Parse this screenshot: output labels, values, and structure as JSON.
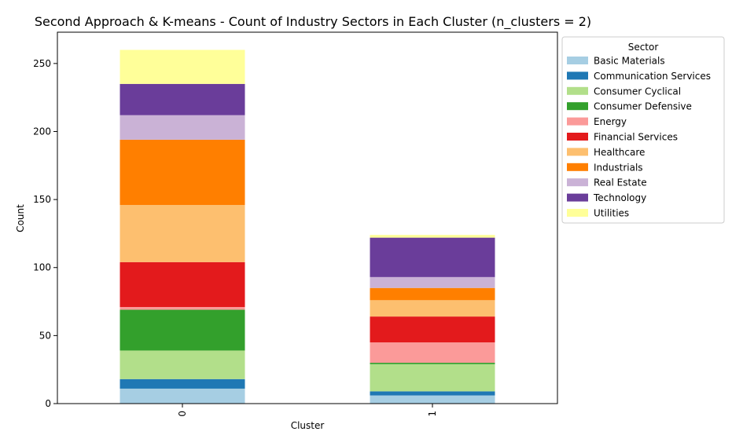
{
  "chart_data": {
    "type": "bar",
    "stacked": true,
    "title": "Second Approach & K-means - Count of Industry Sectors in Each Cluster (n_clusters = 2)",
    "xlabel": "Cluster",
    "ylabel": "Count",
    "categories": [
      "0",
      "1"
    ],
    "ylim": [
      0,
      273
    ],
    "yticks": [
      0,
      50,
      100,
      150,
      200,
      250
    ],
    "grid": false,
    "legend": {
      "title": "Sector",
      "placement": "top-right"
    },
    "series": [
      {
        "name": "Basic Materials",
        "color": "#a6cee3",
        "values": [
          11,
          6
        ]
      },
      {
        "name": "Communication Services",
        "color": "#1f78b4",
        "values": [
          7,
          3
        ]
      },
      {
        "name": "Consumer Cyclical",
        "color": "#b2df8a",
        "values": [
          21,
          20
        ]
      },
      {
        "name": "Consumer Defensive",
        "color": "#33a02c",
        "values": [
          30,
          1
        ]
      },
      {
        "name": "Energy",
        "color": "#fb9a99",
        "values": [
          2,
          15
        ]
      },
      {
        "name": "Financial Services",
        "color": "#e31a1c",
        "values": [
          33,
          19
        ]
      },
      {
        "name": "Healthcare",
        "color": "#fdbf6f",
        "values": [
          42,
          12
        ]
      },
      {
        "name": "Industrials",
        "color": "#ff7f00",
        "values": [
          48,
          9
        ]
      },
      {
        "name": "Real Estate",
        "color": "#cab2d6",
        "values": [
          18,
          8
        ]
      },
      {
        "name": "Technology",
        "color": "#6a3d9a",
        "values": [
          23,
          29
        ]
      },
      {
        "name": "Utilities",
        "color": "#ffff99",
        "values": [
          25,
          2
        ]
      }
    ]
  }
}
